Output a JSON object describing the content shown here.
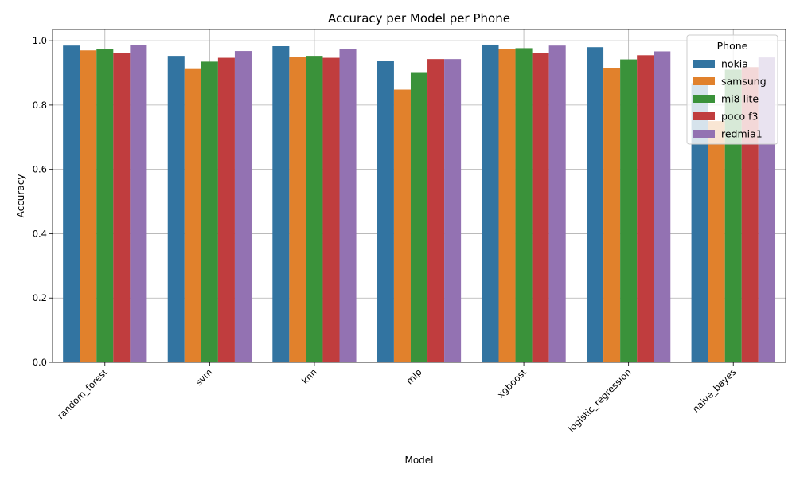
{
  "chart_data": {
    "type": "bar",
    "title": "Accuracy per Model per Phone",
    "xlabel": "Model",
    "ylabel": "Accuracy",
    "ylim": [
      0,
      1.035
    ],
    "yticks": [
      "0.0",
      "0.2",
      "0.4",
      "0.6",
      "0.8",
      "1.0"
    ],
    "grid": true,
    "legend": {
      "title": "Phone",
      "placement": "top-right"
    },
    "categories": [
      "random_forest",
      "svm",
      "knn",
      "mlp",
      "xgboost",
      "logistic_regression",
      "naive_bayes"
    ],
    "series": [
      {
        "name": "nokia",
        "color": "#3274a1",
        "values": [
          0.985,
          0.953,
          0.983,
          0.938,
          0.988,
          0.98,
          0.868
        ]
      },
      {
        "name": "samsung",
        "color": "#e1812c",
        "values": [
          0.97,
          0.912,
          0.95,
          0.848,
          0.975,
          0.915,
          0.75
        ]
      },
      {
        "name": "mi8 lite",
        "color": "#3a923a",
        "values": [
          0.975,
          0.935,
          0.953,
          0.9,
          0.977,
          0.942,
          0.91
        ]
      },
      {
        "name": "poco f3",
        "color": "#c03d3e",
        "values": [
          0.962,
          0.947,
          0.947,
          0.943,
          0.963,
          0.955,
          0.918
        ]
      },
      {
        "name": "redmia1",
        "color": "#9372b2",
        "values": [
          0.987,
          0.968,
          0.975,
          0.943,
          0.985,
          0.967,
          0.948
        ]
      }
    ]
  }
}
